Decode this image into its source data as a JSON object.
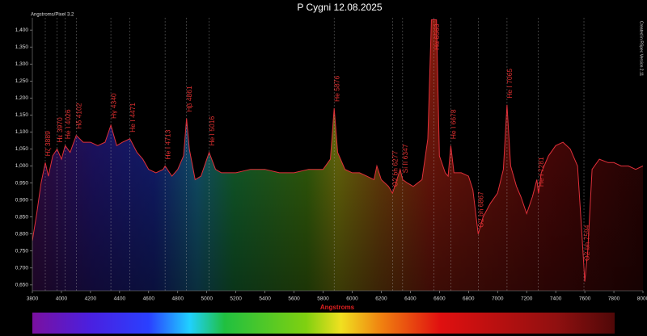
{
  "chart_data": {
    "type": "line",
    "title": "P Cygni 12.08.2025",
    "subtitle": "Angstroms/Pixel 3.2",
    "side_note": "Created in RSpec Version 2.11",
    "x_label": "Angstroms",
    "color": "#e0303a",
    "xlim": [
      3800,
      8000
    ],
    "ylim": [
      0.633,
      1.436
    ],
    "xticks": [
      3800,
      4000,
      4200,
      4400,
      4600,
      4800,
      5000,
      5200,
      5400,
      5600,
      5800,
      6000,
      6200,
      6400,
      6600,
      6800,
      7000,
      7200,
      7400,
      7600,
      7800,
      8000
    ],
    "yticks": [
      {
        "value": 0.65,
        "label": "0,650"
      },
      {
        "value": 0.7,
        "label": "0,700"
      },
      {
        "value": 0.75,
        "label": "0,750"
      },
      {
        "value": 0.8,
        "label": "0,800"
      },
      {
        "value": 0.85,
        "label": "0,850"
      },
      {
        "value": 0.9,
        "label": "0,900"
      },
      {
        "value": 0.95,
        "label": "0,950"
      },
      {
        "value": 1.0,
        "label": "1,000"
      },
      {
        "value": 1.05,
        "label": "1,050"
      },
      {
        "value": 1.1,
        "label": "1,100"
      },
      {
        "value": 1.15,
        "label": "1,150"
      },
      {
        "value": 1.2,
        "label": "1,200"
      },
      {
        "value": 1.25,
        "label": "1,250"
      },
      {
        "value": 1.3,
        "label": "1,300"
      },
      {
        "value": 1.35,
        "label": "1,350"
      },
      {
        "value": 1.4,
        "label": "1,400"
      }
    ],
    "x": [
      3800,
      3830,
      3860,
      3889,
      3910,
      3940,
      3970,
      4000,
      4026,
      4060,
      4102,
      4150,
      4200,
      4250,
      4300,
      4340,
      4380,
      4420,
      4471,
      4520,
      4560,
      4600,
      4650,
      4700,
      4713,
      4760,
      4800,
      4840,
      4861,
      4880,
      4920,
      4960,
      5016,
      5060,
      5100,
      5200,
      5300,
      5400,
      5500,
      5600,
      5700,
      5800,
      5850,
      5876,
      5900,
      5950,
      6000,
      6050,
      6100,
      6150,
      6170,
      6200,
      6250,
      6277,
      6300,
      6330,
      6347,
      6380,
      6420,
      6480,
      6520,
      6545,
      6563,
      6580,
      6600,
      6640,
      6660,
      6678,
      6700,
      6750,
      6800,
      6830,
      6867,
      6900,
      6950,
      7000,
      7040,
      7065,
      7090,
      7130,
      7160,
      7200,
      7240,
      7270,
      7281,
      7300,
      7350,
      7400,
      7450,
      7500,
      7550,
      7580,
      7600,
      7620,
      7650,
      7700,
      7760,
      7800,
      7850,
      7900,
      7950,
      8000
    ],
    "values": [
      0.78,
      0.86,
      0.95,
      1.01,
      0.97,
      1.03,
      1.05,
      1.02,
      1.06,
      1.04,
      1.09,
      1.07,
      1.07,
      1.06,
      1.07,
      1.12,
      1.06,
      1.07,
      1.08,
      1.04,
      1.02,
      0.99,
      0.98,
      0.99,
      1.0,
      0.97,
      0.99,
      1.03,
      1.14,
      1.05,
      0.96,
      0.97,
      1.04,
      0.99,
      0.98,
      0.98,
      0.99,
      0.99,
      0.98,
      0.98,
      0.99,
      0.99,
      1.02,
      1.17,
      1.04,
      0.99,
      0.98,
      0.98,
      0.97,
      0.96,
      1.0,
      0.96,
      0.94,
      0.92,
      0.95,
      0.99,
      0.96,
      0.95,
      0.94,
      0.96,
      1.08,
      1.43,
      1.43,
      1.43,
      1.03,
      0.98,
      0.97,
      1.06,
      0.98,
      0.98,
      0.97,
      0.93,
      0.8,
      0.85,
      0.89,
      0.92,
      0.99,
      1.18,
      1.0,
      0.94,
      0.91,
      0.86,
      0.91,
      0.96,
      0.92,
      0.98,
      1.03,
      1.06,
      1.07,
      1.05,
      1.0,
      0.8,
      0.66,
      0.75,
      0.99,
      1.02,
      1.01,
      1.01,
      1.0,
      1.0,
      0.99,
      1.0
    ],
    "lines": [
      {
        "label": "Hζ 3889",
        "x": 3889
      },
      {
        "label": "Hε 3970",
        "x": 3970
      },
      {
        "label": "He I 4026",
        "x": 4026
      },
      {
        "label": "Hδ 4102",
        "x": 4102
      },
      {
        "label": "Hγ 4340",
        "x": 4340
      },
      {
        "label": "He I 4471",
        "x": 4471
      },
      {
        "label": "He I 4713",
        "x": 4713
      },
      {
        "label": "Hβ 4861",
        "x": 4861
      },
      {
        "label": "He I 5016",
        "x": 5016
      },
      {
        "label": "He 5876",
        "x": 5876
      },
      {
        "label": "O2 bh 6277",
        "x": 6277
      },
      {
        "label": "Si II 6347",
        "x": 6347
      },
      {
        "label": "Hα 6563",
        "x": 6563
      },
      {
        "label": "He I 6678",
        "x": 6678
      },
      {
        "label": "O2 bh 6867",
        "x": 6867
      },
      {
        "label": "He I 7065",
        "x": 7065
      },
      {
        "label": "He I 7281",
        "x": 7281
      },
      {
        "label": "O2 bh 7594",
        "x": 7594
      }
    ]
  }
}
